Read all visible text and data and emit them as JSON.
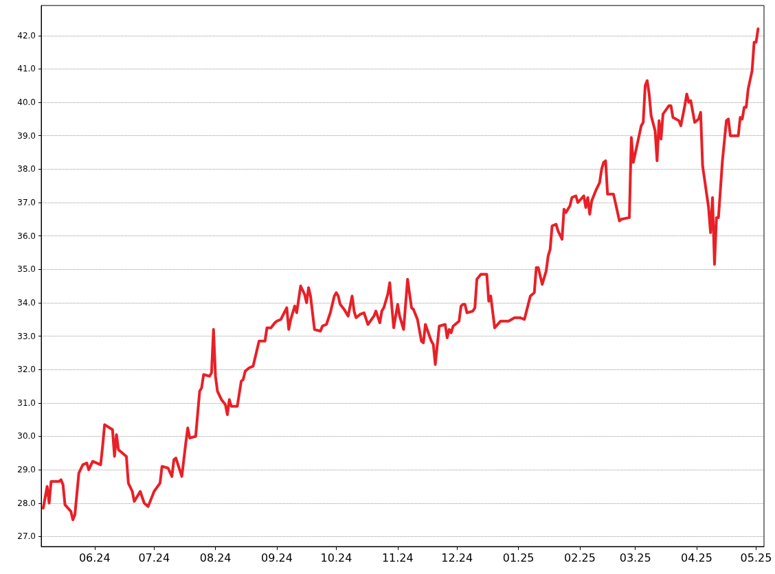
{
  "chart_data": {
    "type": "line",
    "x": [
      "2024-05-06",
      "2024-05-08",
      "2024-05-09",
      "2024-05-10",
      "2024-05-14",
      "2024-05-15",
      "2024-05-16",
      "2024-05-17",
      "2024-05-20",
      "2024-05-21",
      "2024-05-22",
      "2024-05-24",
      "2024-05-26",
      "2024-05-28",
      "2024-05-29",
      "2024-05-31",
      "2024-06-04",
      "2024-06-05",
      "2024-06-06",
      "2024-06-10",
      "2024-06-11",
      "2024-06-12",
      "2024-06-13",
      "2024-06-17",
      "2024-06-18",
      "2024-06-20",
      "2024-06-21",
      "2024-06-24",
      "2024-06-26",
      "2024-06-28",
      "2024-07-01",
      "2024-07-04",
      "2024-07-05",
      "2024-07-08",
      "2024-07-10",
      "2024-07-11",
      "2024-07-12",
      "2024-07-15",
      "2024-07-17",
      "2024-07-18",
      "2024-07-19",
      "2024-07-22",
      "2024-07-24",
      "2024-07-25",
      "2024-07-26",
      "2024-07-29",
      "2024-07-30",
      "2024-07-31",
      "2024-08-01",
      "2024-08-02",
      "2024-08-04",
      "2024-08-06",
      "2024-08-07",
      "2024-08-08",
      "2024-08-09",
      "2024-08-12",
      "2024-08-14",
      "2024-08-15",
      "2024-08-16",
      "2024-08-18",
      "2024-08-20",
      "2024-08-21",
      "2024-08-23",
      "2024-08-26",
      "2024-08-27",
      "2024-08-29",
      "2024-08-31",
      "2024-09-01",
      "2024-09-03",
      "2024-09-06",
      "2024-09-07",
      "2024-09-08",
      "2024-09-10",
      "2024-09-11",
      "2024-09-13",
      "2024-09-15",
      "2024-09-16",
      "2024-09-17",
      "2024-09-18",
      "2024-09-20",
      "2024-09-23",
      "2024-09-24",
      "2024-09-26",
      "2024-09-28",
      "2024-09-30",
      "2024-10-01",
      "2024-10-02",
      "2024-10-03",
      "2024-10-05",
      "2024-10-07",
      "2024-10-09",
      "2024-10-10",
      "2024-10-11",
      "2024-10-13",
      "2024-10-15",
      "2024-10-17",
      "2024-10-20",
      "2024-10-21",
      "2024-10-23",
      "2024-10-24",
      "2024-10-25",
      "2024-10-27",
      "2024-10-28",
      "2024-10-30",
      "2024-11-01",
      "2024-11-02",
      "2024-11-04",
      "2024-11-06",
      "2024-11-08",
      "2024-11-09",
      "2024-11-11",
      "2024-11-13",
      "2024-11-14",
      "2024-11-15",
      "2024-11-18",
      "2024-11-19",
      "2024-11-20",
      "2024-11-22",
      "2024-11-25",
      "2024-11-26",
      "2024-11-27",
      "2024-11-28",
      "2024-11-29",
      "2024-12-02",
      "2024-12-03",
      "2024-12-04",
      "2024-12-05",
      "2024-12-06",
      "2024-12-09",
      "2024-12-10",
      "2024-12-11",
      "2024-12-13",
      "2024-12-16",
      "2024-12-17",
      "2024-12-18",
      "2024-12-20",
      "2024-12-23",
      "2024-12-27",
      "2024-12-30",
      "2025-01-02",
      "2025-01-04",
      "2025-01-07",
      "2025-01-09",
      "2025-01-10",
      "2025-01-11",
      "2025-01-13",
      "2025-01-15",
      "2025-01-16",
      "2025-01-17",
      "2025-01-18",
      "2025-01-20",
      "2025-01-21",
      "2025-01-23",
      "2025-01-24",
      "2025-01-25",
      "2025-01-27",
      "2025-01-28",
      "2025-01-30",
      "2025-01-31",
      "2025-02-03",
      "2025-02-04",
      "2025-02-05",
      "2025-02-06",
      "2025-02-07",
      "2025-02-09",
      "2025-02-11",
      "2025-02-12",
      "2025-02-13",
      "2025-02-14",
      "2025-02-15",
      "2025-02-18",
      "2025-02-21",
      "2025-02-22",
      "2025-02-26",
      "2025-02-27",
      "2025-02-28",
      "2025-03-04",
      "2025-03-05",
      "2025-03-06",
      "2025-03-07",
      "2025-03-08",
      "2025-03-09",
      "2025-03-11",
      "2025-03-12",
      "2025-03-13",
      "2025-03-14",
      "2025-03-15",
      "2025-03-18",
      "2025-03-19",
      "2025-03-20",
      "2025-03-23",
      "2025-03-24",
      "2025-03-26",
      "2025-03-27",
      "2025-03-28",
      "2025-03-29",
      "2025-03-31",
      "2025-04-02",
      "2025-04-03",
      "2025-04-04",
      "2025-04-07",
      "2025-04-08",
      "2025-04-09",
      "2025-04-10",
      "2025-04-11",
      "2025-04-12",
      "2025-04-13",
      "2025-04-14",
      "2025-04-16",
      "2025-04-17",
      "2025-04-18",
      "2025-04-22",
      "2025-04-23",
      "2025-04-24",
      "2025-04-25",
      "2025-04-26",
      "2025-04-27",
      "2025-04-29",
      "2025-04-30",
      "2025-05-01",
      "2025-05-02"
    ],
    "series": [
      {
        "color": "#e82027",
        "values": [
          27.85,
          28.5,
          28.0,
          28.65,
          28.65,
          28.7,
          28.55,
          27.95,
          27.75,
          27.5,
          27.65,
          28.9,
          29.15,
          29.2,
          29.0,
          29.25,
          29.15,
          29.7,
          30.35,
          30.2,
          29.4,
          30.05,
          29.6,
          29.4,
          28.6,
          28.35,
          28.05,
          28.35,
          28.0,
          27.9,
          28.35,
          28.6,
          29.1,
          29.05,
          28.8,
          29.3,
          29.35,
          28.8,
          29.8,
          30.25,
          29.95,
          30.0,
          31.35,
          31.45,
          31.85,
          31.8,
          31.9,
          33.2,
          31.8,
          31.35,
          31.1,
          30.95,
          30.65,
          31.1,
          30.9,
          30.9,
          31.65,
          31.7,
          31.95,
          32.05,
          32.1,
          32.35,
          32.85,
          32.85,
          33.25,
          33.25,
          33.4,
          33.45,
          33.5,
          33.85,
          33.2,
          33.5,
          33.9,
          33.7,
          34.5,
          34.25,
          34.0,
          34.45,
          34.2,
          33.2,
          33.15,
          33.3,
          33.35,
          33.7,
          34.2,
          34.3,
          34.2,
          33.95,
          33.8,
          33.6,
          34.2,
          33.75,
          33.55,
          33.65,
          33.7,
          33.35,
          33.6,
          33.75,
          33.4,
          33.75,
          33.85,
          34.25,
          34.6,
          33.25,
          33.95,
          33.6,
          33.2,
          34.7,
          33.85,
          33.8,
          33.5,
          32.85,
          32.8,
          33.35,
          32.85,
          32.75,
          32.15,
          33.3,
          33.35,
          32.95,
          33.2,
          33.1,
          33.3,
          33.45,
          33.9,
          33.95,
          33.95,
          33.7,
          33.75,
          33.85,
          34.7,
          34.85,
          34.85,
          34.05,
          34.2,
          33.25,
          33.45,
          33.45,
          33.55,
          33.55,
          33.5,
          34.2,
          34.3,
          35.05,
          35.05,
          34.55,
          34.95,
          35.4,
          35.6,
          36.3,
          36.35,
          36.15,
          35.9,
          36.8,
          36.7,
          36.9,
          37.15,
          37.2,
          37.0,
          37.2,
          36.85,
          37.15,
          36.65,
          37.05,
          37.35,
          37.6,
          38.0,
          38.2,
          38.25,
          37.25,
          37.25,
          36.45,
          36.5,
          36.55,
          38.95,
          38.2,
          39.3,
          39.4,
          40.5,
          40.65,
          40.25,
          39.6,
          39.15,
          38.25,
          39.45,
          38.9,
          39.65,
          39.9,
          39.9,
          39.55,
          39.45,
          39.3,
          39.9,
          40.25,
          40.0,
          40.05,
          39.4,
          39.5,
          39.7,
          38.1,
          36.85,
          36.1,
          37.15,
          35.15,
          36.55,
          36.55,
          37.4,
          38.25,
          39.45,
          39.5,
          39.0,
          39.0,
          39.55,
          39.5,
          39.85,
          39.85,
          40.4,
          40.95,
          41.8,
          41.8,
          42.2
        ]
      }
    ],
    "xlim": [
      "2024-05-05",
      "2025-05-05"
    ],
    "xticks": [
      {
        "value": "2024-06-01",
        "label": "06.24"
      },
      {
        "value": "2024-07-01",
        "label": "07.24"
      },
      {
        "value": "2024-08-01",
        "label": "08.24"
      },
      {
        "value": "2024-09-01",
        "label": "09.24"
      },
      {
        "value": "2024-10-01",
        "label": "10.24"
      },
      {
        "value": "2024-11-01",
        "label": "11.24"
      },
      {
        "value": "2024-12-01",
        "label": "12.24"
      },
      {
        "value": "2025-01-01",
        "label": "01.25"
      },
      {
        "value": "2025-02-01",
        "label": "02.25"
      },
      {
        "value": "2025-03-01",
        "label": "03.25"
      },
      {
        "value": "2025-04-01",
        "label": "04.25"
      },
      {
        "value": "2025-05-01",
        "label": "05.25"
      }
    ],
    "ylim": [
      26.7,
      42.9
    ],
    "yticks": [
      {
        "value": 27,
        "label": "27.0"
      },
      {
        "value": 28,
        "label": "28.0"
      },
      {
        "value": 29,
        "label": "29.0"
      },
      {
        "value": 30,
        "label": "30.0"
      },
      {
        "value": 31,
        "label": "31.0"
      },
      {
        "value": 32,
        "label": "32.0"
      },
      {
        "value": 33,
        "label": "33.0"
      },
      {
        "value": 34,
        "label": "34.0"
      },
      {
        "value": 35,
        "label": "35.0"
      },
      {
        "value": 36,
        "label": "36.0"
      },
      {
        "value": 37,
        "label": "37.0"
      },
      {
        "value": 38,
        "label": "38.0"
      },
      {
        "value": 39,
        "label": "39.0"
      },
      {
        "value": 40,
        "label": "40.0"
      },
      {
        "value": 41,
        "label": "41.0"
      },
      {
        "value": 42,
        "label": "42.0"
      }
    ],
    "grid": "y",
    "marker": "none",
    "line_style": "solid"
  }
}
